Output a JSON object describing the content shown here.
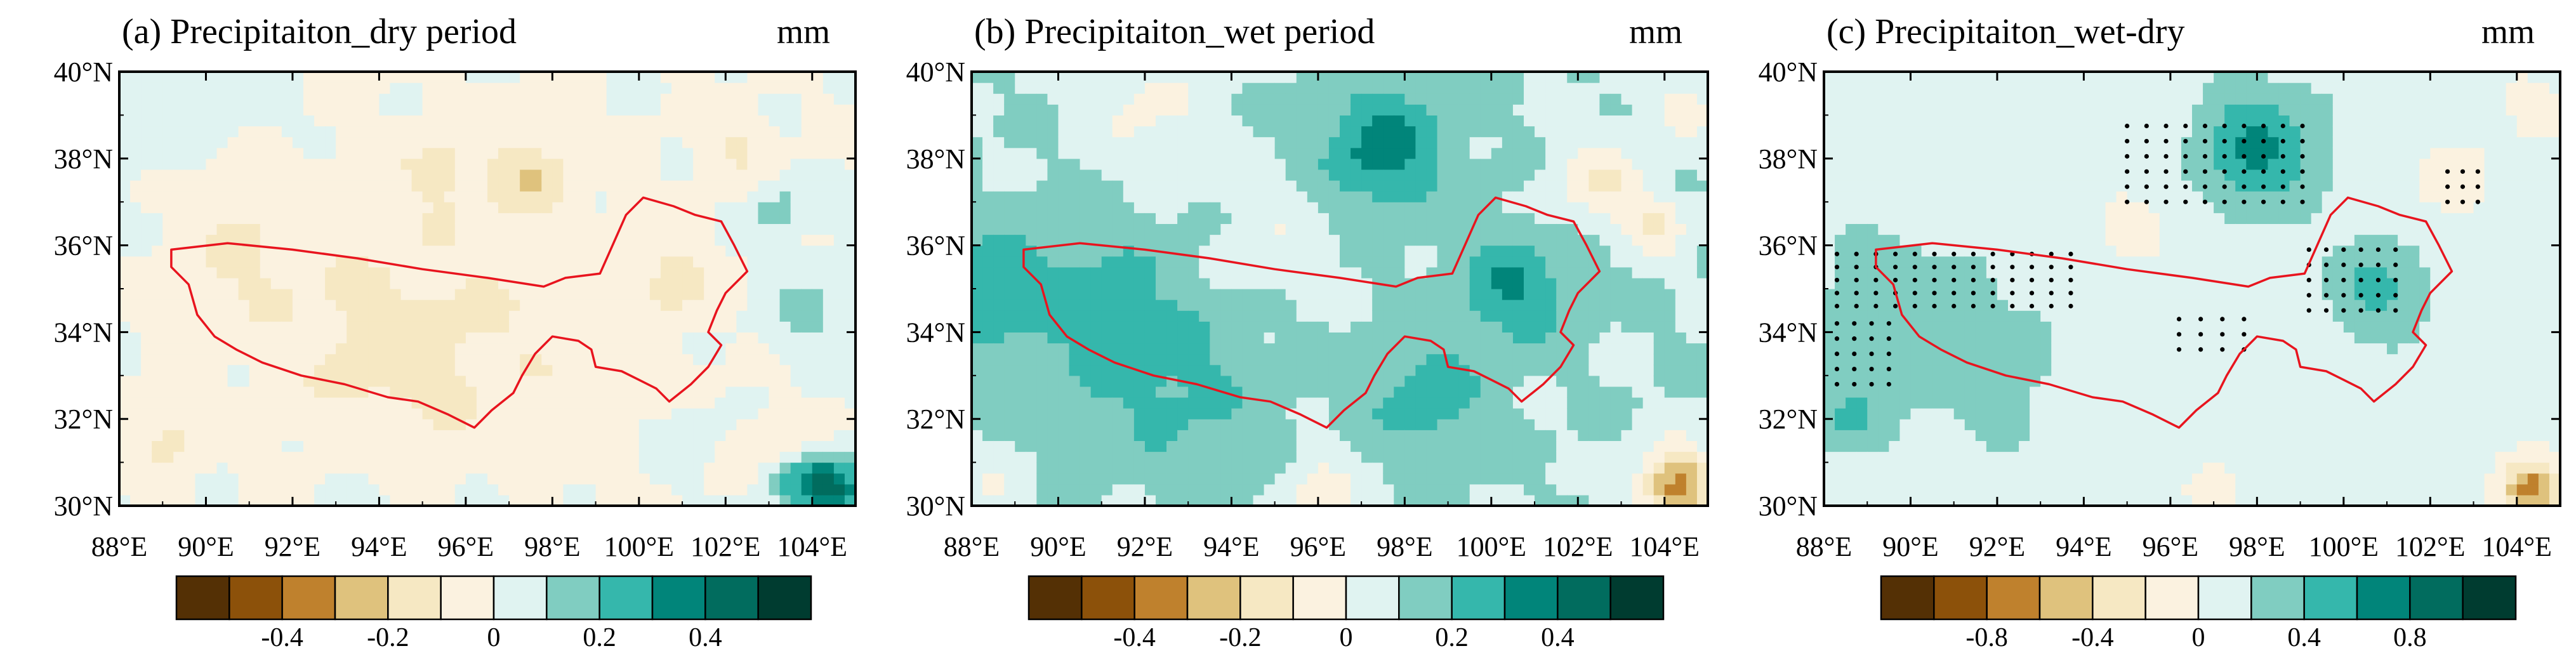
{
  "chart_data": [
    {
      "type": "heatmap",
      "panel": "a",
      "title": "(a) Precipitaiton_dry period",
      "units": "mm",
      "x_ticks": [
        "88°E",
        "90°E",
        "92°E",
        "94°E",
        "96°E",
        "98°E",
        "100°E",
        "102°E",
        "104°E"
      ],
      "y_ticks": [
        "40°N",
        "38°N",
        "36°N",
        "34°N",
        "32°N",
        "30°N"
      ],
      "xlim": [
        88,
        105
      ],
      "ylim": [
        30,
        40
      ],
      "colorbar": {
        "levels": [
          -0.5,
          -0.4,
          -0.3,
          -0.2,
          -0.1,
          0,
          0.1,
          0.2,
          0.3,
          0.4,
          0.5
        ],
        "labels": [
          "-0.4",
          "-0.2",
          "0",
          "0.2",
          "0.4"
        ],
        "label_values": [
          -0.4,
          -0.2,
          0,
          0.2,
          0.4
        ],
        "colors": [
          "#543005",
          "#8c510a",
          "#bf812d",
          "#dfc27d",
          "#f6e8c3",
          "#fbf2e0",
          "#e0f3f1",
          "#80cdc1",
          "#35b7ac",
          "#01857a",
          "#016c5e",
          "#003c30"
        ]
      },
      "field": {
        "base": 0.0,
        "blobs": [
          {
            "lon": 96,
            "lat": 34,
            "value": -0.09,
            "sigma": 2.8
          },
          {
            "lon": 91,
            "lat": 35.8,
            "value": -0.1,
            "sigma": 1.2
          },
          {
            "lon": 94,
            "lat": 33.5,
            "value": -0.08,
            "sigma": 1.3
          },
          {
            "lon": 97.5,
            "lat": 37.6,
            "value": -0.16,
            "sigma": 0.6
          },
          {
            "lon": 95.5,
            "lat": 37.8,
            "value": -0.1,
            "sigma": 0.7
          },
          {
            "lon": 100.8,
            "lat": 35.2,
            "value": -0.14,
            "sigma": 0.6
          },
          {
            "lon": 89.2,
            "lat": 31.5,
            "value": -0.12,
            "sigma": 0.6
          },
          {
            "lon": 102.3,
            "lat": 38.3,
            "value": -0.1,
            "sigma": 0.6
          },
          {
            "lon": 103.2,
            "lat": 31.5,
            "value": -0.12,
            "sigma": 0.5
          },
          {
            "lon": 88.8,
            "lat": 38.8,
            "value": 0.08,
            "sigma": 0.8
          },
          {
            "lon": 91,
            "lat": 39.5,
            "value": 0.07,
            "sigma": 0.7
          },
          {
            "lon": 103.2,
            "lat": 36.8,
            "value": 0.15,
            "sigma": 0.45
          },
          {
            "lon": 104,
            "lat": 34.5,
            "value": 0.12,
            "sigma": 0.8
          },
          {
            "lon": 104.5,
            "lat": 30.4,
            "value": 0.42,
            "sigma": 0.5
          },
          {
            "lon": 103.6,
            "lat": 30.6,
            "value": 0.2,
            "sigma": 0.5
          },
          {
            "lon": 96.5,
            "lat": 30.3,
            "value": 0.08,
            "sigma": 0.5
          },
          {
            "lon": 93.5,
            "lat": 30.5,
            "value": 0.06,
            "sigma": 0.6
          },
          {
            "lon": 101,
            "lat": 31.5,
            "value": 0.07,
            "sigma": 0.6
          }
        ]
      },
      "stipple": []
    },
    {
      "type": "heatmap",
      "panel": "b",
      "title": "(b) Precipitaiton_wet period",
      "units": "mm",
      "x_ticks": [
        "88°E",
        "90°E",
        "92°E",
        "94°E",
        "96°E",
        "98°E",
        "100°E",
        "102°E",
        "104°E"
      ],
      "y_ticks": [
        "40°N",
        "38°N",
        "36°N",
        "34°N",
        "32°N",
        "30°N"
      ],
      "xlim": [
        88,
        105
      ],
      "ylim": [
        30,
        40
      ],
      "colorbar": {
        "levels": [
          -0.5,
          -0.4,
          -0.3,
          -0.2,
          -0.1,
          0,
          0.1,
          0.2,
          0.3,
          0.4,
          0.5
        ],
        "labels": [
          "-0.4",
          "-0.2",
          "0",
          "0.2",
          "0.4"
        ],
        "label_values": [
          -0.4,
          -0.2,
          0,
          0.2,
          0.4
        ],
        "colors": [
          "#543005",
          "#8c510a",
          "#bf812d",
          "#dfc27d",
          "#f6e8c3",
          "#fbf2e0",
          "#e0f3f1",
          "#80cdc1",
          "#35b7ac",
          "#01857a",
          "#016c5e",
          "#003c30"
        ]
      },
      "field": {
        "base": 0.1,
        "blobs": [
          {
            "lon": 91,
            "lat": 34.5,
            "value": 0.12,
            "sigma": 1.5
          },
          {
            "lon": 88.5,
            "lat": 35,
            "value": 0.15,
            "sigma": 0.9
          },
          {
            "lon": 93,
            "lat": 32.5,
            "value": 0.1,
            "sigma": 1.4
          },
          {
            "lon": 97.5,
            "lat": 38.2,
            "value": 0.25,
            "sigma": 1.0
          },
          {
            "lon": 100.5,
            "lat": 35,
            "value": 0.2,
            "sigma": 0.9
          },
          {
            "lon": 98.5,
            "lat": 32.5,
            "value": 0.15,
            "sigma": 1.0
          },
          {
            "lon": 95,
            "lat": 36.2,
            "value": -0.08,
            "sigma": 1.0
          },
          {
            "lon": 92,
            "lat": 39.2,
            "value": -0.12,
            "sigma": 1.0
          },
          {
            "lon": 102.5,
            "lat": 37.5,
            "value": -0.2,
            "sigma": 0.7
          },
          {
            "lon": 103.8,
            "lat": 36.5,
            "value": -0.2,
            "sigma": 0.5
          },
          {
            "lon": 104.3,
            "lat": 30.5,
            "value": -0.45,
            "sigma": 0.6
          },
          {
            "lon": 96,
            "lat": 30.3,
            "value": -0.18,
            "sigma": 0.6
          },
          {
            "lon": 88.5,
            "lat": 30.4,
            "value": -0.1,
            "sigma": 0.5
          },
          {
            "lon": 104.5,
            "lat": 39.3,
            "value": -0.12,
            "sigma": 0.7
          }
        ]
      },
      "stipple": []
    },
    {
      "type": "heatmap",
      "panel": "c",
      "title": "(c) Precipitaiton_wet-dry",
      "units": "mm",
      "x_ticks": [
        "88°E",
        "90°E",
        "92°E",
        "94°E",
        "96°E",
        "98°E",
        "100°E",
        "102°E",
        "104°E"
      ],
      "y_ticks": [
        "40°N",
        "38°N",
        "36°N",
        "34°N",
        "32°N",
        "30°N"
      ],
      "xlim": [
        88,
        105
      ],
      "ylim": [
        30,
        40
      ],
      "colorbar": {
        "levels": [
          -1.0,
          -0.8,
          -0.6,
          -0.4,
          -0.2,
          0,
          0.2,
          0.4,
          0.6,
          0.8,
          1.0
        ],
        "labels": [
          "-0.8",
          "-0.4",
          "0",
          "0.4",
          "0.8"
        ],
        "label_values": [
          -0.8,
          -0.4,
          0,
          0.4,
          0.8
        ],
        "colors": [
          "#543005",
          "#8c510a",
          "#bf812d",
          "#dfc27d",
          "#f6e8c3",
          "#fbf2e0",
          "#e0f3f1",
          "#80cdc1",
          "#35b7ac",
          "#01857a",
          "#016c5e",
          "#003c30"
        ]
      },
      "field": {
        "base": 0.1,
        "blobs": [
          {
            "lon": 98,
            "lat": 38.2,
            "value": 0.55,
            "sigma": 1.0
          },
          {
            "lon": 100.8,
            "lat": 35,
            "value": 0.35,
            "sigma": 0.8
          },
          {
            "lon": 89.5,
            "lat": 34.5,
            "value": 0.25,
            "sigma": 1.3
          },
          {
            "lon": 92,
            "lat": 33,
            "value": 0.15,
            "sigma": 1.4
          },
          {
            "lon": 88.6,
            "lat": 32,
            "value": 0.3,
            "sigma": 0.6
          },
          {
            "lon": 95,
            "lat": 36.5,
            "value": -0.12,
            "sigma": 1.1
          },
          {
            "lon": 102.5,
            "lat": 37.5,
            "value": -0.2,
            "sigma": 0.7
          },
          {
            "lon": 104.3,
            "lat": 30.4,
            "value": -0.8,
            "sigma": 0.5
          },
          {
            "lon": 97,
            "lat": 30.3,
            "value": -0.15,
            "sigma": 0.6
          },
          {
            "lon": 104.4,
            "lat": 39.3,
            "value": -0.15,
            "sigma": 0.7
          }
        ]
      },
      "stipple": [
        {
          "lon": [
            95,
            99.3
          ],
          "lat": [
            37,
            38.8
          ],
          "step": [
            0.45,
            0.35
          ]
        },
        {
          "lon": [
            99.2,
            101.3
          ],
          "lat": [
            34.5,
            36.2
          ],
          "step": [
            0.4,
            0.35
          ]
        },
        {
          "lon": [
            88.3,
            93.8
          ],
          "lat": [
            34.6,
            36.0
          ],
          "step": [
            0.45,
            0.3
          ]
        },
        {
          "lon": [
            88.3,
            89.8
          ],
          "lat": [
            32.8,
            34.2
          ],
          "step": [
            0.4,
            0.35
          ]
        },
        {
          "lon": [
            96.2,
            97.8
          ],
          "lat": [
            33.6,
            34.6
          ],
          "step": [
            0.5,
            0.35
          ]
        },
        {
          "lon": [
            102.4,
            103.3
          ],
          "lat": [
            37,
            37.7
          ],
          "step": [
            0.35,
            0.35
          ]
        }
      ]
    }
  ]
}
